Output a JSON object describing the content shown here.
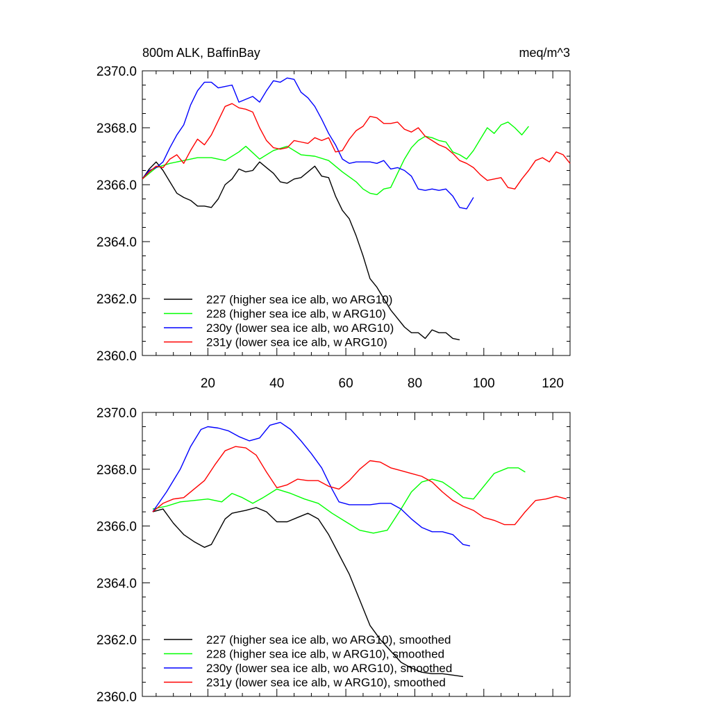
{
  "header": {
    "title": "800m ALK, BaffinBay",
    "units": "meq/m^3"
  },
  "chart_data": [
    {
      "type": "line",
      "title": "800m ALK, BaffinBay",
      "units": "meq/m^3",
      "xlim": [
        1,
        125
      ],
      "ylim": [
        2360,
        2370
      ],
      "xticks": [
        20,
        40,
        60,
        80,
        100,
        120
      ],
      "yticks": [
        2360,
        2362,
        2364,
        2366,
        2368,
        2370
      ],
      "ytick_labels": [
        "2360.0",
        "2362.0",
        "2364.0",
        "2366.0",
        "2368.0",
        "2370.0"
      ],
      "legend_position": "bottom-left",
      "series": [
        {
          "name": "227 (higher sea ice alb, wo ARG10)",
          "color": "#000000",
          "x": [
            1,
            3,
            5,
            7,
            9,
            11,
            13,
            15,
            17,
            19,
            21,
            23,
            25,
            27,
            29,
            31,
            33,
            35,
            37,
            39,
            41,
            43,
            45,
            47,
            49,
            51,
            53,
            55,
            57,
            59,
            61,
            63,
            65,
            67,
            69,
            71,
            73,
            75,
            77,
            79,
            81,
            83,
            85,
            87,
            89,
            91,
            93
          ],
          "y": [
            2366.2,
            2366.55,
            2366.8,
            2366.5,
            2366.1,
            2365.7,
            2365.55,
            2365.45,
            2365.25,
            2365.25,
            2365.2,
            2365.5,
            2366.0,
            2366.2,
            2366.55,
            2366.45,
            2366.5,
            2366.8,
            2366.6,
            2366.4,
            2366.1,
            2366.05,
            2366.2,
            2366.25,
            2366.45,
            2366.65,
            2366.3,
            2366.25,
            2365.6,
            2365.1,
            2364.8,
            2364.2,
            2363.5,
            2362.7,
            2362.4,
            2362.0,
            2361.6,
            2361.3,
            2361.0,
            2360.8,
            2360.8,
            2360.6,
            2360.9,
            2360.8,
            2360.8,
            2360.6,
            2360.55
          ]
        },
        {
          "name": "228 (higher sea ice alb, w ARG10)",
          "color": "#00ff00",
          "x": [
            1,
            5,
            9,
            13,
            17,
            21,
            25,
            29,
            31,
            35,
            39,
            43,
            47,
            51,
            55,
            59,
            63,
            65,
            67,
            69,
            71,
            73,
            75,
            77,
            79,
            81,
            83,
            85,
            87,
            89,
            91,
            93,
            95,
            97,
            99,
            101,
            103,
            105,
            107,
            109,
            111,
            113
          ],
          "y": [
            2366.2,
            2366.6,
            2366.75,
            2366.85,
            2366.95,
            2366.95,
            2366.85,
            2367.15,
            2367.35,
            2366.9,
            2367.2,
            2367.35,
            2367.05,
            2367.0,
            2366.85,
            2366.45,
            2366.1,
            2365.85,
            2365.7,
            2365.65,
            2365.85,
            2365.9,
            2366.4,
            2366.9,
            2367.3,
            2367.55,
            2367.7,
            2367.65,
            2367.55,
            2367.5,
            2367.15,
            2367.05,
            2366.9,
            2367.2,
            2367.6,
            2368.0,
            2367.8,
            2368.1,
            2368.2,
            2368.0,
            2367.75,
            2368.05
          ]
        },
        {
          "name": "230y (lower sea ice alb, wo ARG10)",
          "color": "#0000ff",
          "x": [
            1,
            3,
            5,
            7,
            9,
            11,
            13,
            15,
            17,
            19,
            21,
            23,
            25,
            27,
            29,
            31,
            33,
            35,
            37,
            39,
            41,
            43,
            45,
            47,
            49,
            51,
            53,
            55,
            57,
            59,
            61,
            63,
            65,
            67,
            69,
            71,
            73,
            75,
            77,
            79,
            81,
            83,
            85,
            87,
            89,
            91,
            93,
            95,
            97
          ],
          "y": [
            2366.2,
            2366.5,
            2366.6,
            2366.8,
            2367.3,
            2367.75,
            2368.1,
            2368.8,
            2369.3,
            2369.6,
            2369.6,
            2369.4,
            2369.45,
            2369.5,
            2368.9,
            2369.0,
            2369.1,
            2368.9,
            2369.3,
            2369.65,
            2369.6,
            2369.75,
            2369.7,
            2369.25,
            2369.05,
            2368.75,
            2368.3,
            2367.8,
            2367.4,
            2366.9,
            2366.75,
            2366.8,
            2366.8,
            2366.8,
            2366.75,
            2366.85,
            2366.55,
            2366.6,
            2366.5,
            2366.3,
            2365.85,
            2365.8,
            2365.85,
            2365.8,
            2365.85,
            2365.6,
            2365.2,
            2365.15,
            2365.55
          ]
        },
        {
          "name": "231y (lower sea ice alb, w ARG10)",
          "color": "#ff0000",
          "x": [
            1,
            3,
            5,
            7,
            9,
            11,
            13,
            15,
            17,
            19,
            21,
            23,
            25,
            27,
            29,
            31,
            33,
            35,
            37,
            39,
            41,
            43,
            45,
            47,
            49,
            51,
            53,
            55,
            57,
            59,
            61,
            63,
            65,
            67,
            69,
            71,
            73,
            75,
            77,
            79,
            81,
            83,
            85,
            87,
            89,
            91,
            93,
            95,
            97,
            99,
            101,
            103,
            105,
            107,
            109,
            111,
            113,
            115,
            117,
            119,
            121,
            123,
            125
          ],
          "y": [
            2366.2,
            2366.45,
            2366.65,
            2366.6,
            2366.9,
            2367.05,
            2366.75,
            2367.2,
            2367.6,
            2367.4,
            2367.75,
            2368.25,
            2368.75,
            2368.85,
            2368.7,
            2368.65,
            2368.55,
            2368.0,
            2367.55,
            2367.3,
            2367.25,
            2367.3,
            2367.55,
            2367.5,
            2367.45,
            2367.65,
            2367.55,
            2367.65,
            2367.15,
            2367.2,
            2367.6,
            2367.9,
            2368.05,
            2368.4,
            2368.35,
            2368.15,
            2368.15,
            2368.2,
            2367.95,
            2367.85,
            2368.0,
            2367.7,
            2367.55,
            2367.4,
            2367.3,
            2367.1,
            2366.85,
            2366.75,
            2366.6,
            2366.35,
            2366.15,
            2366.2,
            2366.25,
            2365.9,
            2365.85,
            2366.2,
            2366.5,
            2366.85,
            2366.95,
            2366.8,
            2367.15,
            2367.05,
            2366.75
          ]
        }
      ]
    },
    {
      "type": "line",
      "xlim": [
        1,
        125
      ],
      "ylim": [
        2360,
        2370
      ],
      "xticks": [
        20,
        40,
        60,
        80,
        100,
        120
      ],
      "yticks": [
        2360,
        2362,
        2364,
        2366,
        2368,
        2370
      ],
      "ytick_labels": [
        "2360.0",
        "2362.0",
        "2364.0",
        "2366.0",
        "2368.0",
        "2370.0"
      ],
      "legend_position": "bottom-left",
      "series": [
        {
          "name": "227 (higher sea ice alb, wo ARG10), smoothed",
          "color": "#000000",
          "x": [
            4,
            7,
            10,
            13,
            16,
            19,
            21,
            23,
            25,
            27,
            29,
            31,
            34,
            37,
            40,
            43,
            46,
            49,
            52,
            55,
            58,
            61,
            64,
            67,
            70,
            73,
            76,
            79,
            82,
            85,
            88,
            91,
            94
          ],
          "y": [
            2366.5,
            2366.6,
            2366.1,
            2365.7,
            2365.45,
            2365.25,
            2365.35,
            2365.8,
            2366.25,
            2366.45,
            2366.5,
            2366.55,
            2366.65,
            2366.5,
            2366.15,
            2366.15,
            2366.3,
            2366.45,
            2366.25,
            2365.7,
            2365.0,
            2364.3,
            2363.4,
            2362.5,
            2362.0,
            2361.6,
            2361.2,
            2361.0,
            2360.85,
            2360.8,
            2360.8,
            2360.75,
            2360.7
          ]
        },
        {
          "name": "228 (higher sea ice alb, w ARG10), smoothed",
          "color": "#00ff00",
          "x": [
            4,
            8,
            12,
            16,
            20,
            24,
            27,
            30,
            33,
            36,
            40,
            44,
            48,
            52,
            56,
            60,
            64,
            68,
            72,
            76,
            79,
            82,
            85,
            88,
            91,
            94,
            97,
            100,
            103,
            107,
            110,
            112
          ],
          "y": [
            2366.6,
            2366.7,
            2366.85,
            2366.9,
            2366.95,
            2366.85,
            2367.15,
            2367.0,
            2366.8,
            2367.0,
            2367.3,
            2367.15,
            2366.95,
            2366.8,
            2366.45,
            2366.15,
            2365.85,
            2365.75,
            2365.85,
            2366.6,
            2367.2,
            2367.55,
            2367.65,
            2367.55,
            2367.3,
            2367.0,
            2366.95,
            2367.4,
            2367.85,
            2368.05,
            2368.05,
            2367.9
          ]
        },
        {
          "name": "230y (lower sea ice alb, wo ARG10), smoothed",
          "color": "#0000ff",
          "x": [
            4,
            8,
            12,
            15,
            18,
            20,
            23,
            26,
            29,
            32,
            35,
            38,
            41,
            44,
            47,
            50,
            53,
            56,
            58,
            61,
            64,
            67,
            70,
            73,
            76,
            79,
            82,
            85,
            88,
            91,
            94,
            96
          ],
          "y": [
            2366.5,
            2367.2,
            2368.0,
            2368.8,
            2369.4,
            2369.5,
            2369.45,
            2369.35,
            2369.15,
            2369.0,
            2369.1,
            2369.55,
            2369.65,
            2369.4,
            2369.0,
            2368.55,
            2368.05,
            2367.3,
            2366.85,
            2366.75,
            2366.75,
            2366.75,
            2366.8,
            2366.8,
            2366.6,
            2366.25,
            2365.95,
            2365.8,
            2365.8,
            2365.7,
            2365.35,
            2365.3
          ]
        },
        {
          "name": "231y (lower sea ice alb, w ARG10), smoothed",
          "color": "#ff0000",
          "x": [
            4,
            7,
            10,
            13,
            16,
            19,
            22,
            25,
            28,
            31,
            34,
            37,
            40,
            43,
            46,
            49,
            52,
            55,
            58,
            61,
            64,
            67,
            70,
            73,
            76,
            79,
            82,
            85,
            88,
            91,
            94,
            97,
            100,
            103,
            106,
            109,
            112,
            115,
            118,
            121,
            124
          ],
          "y": [
            2366.5,
            2366.8,
            2366.95,
            2367.0,
            2367.3,
            2367.6,
            2368.15,
            2368.65,
            2368.8,
            2368.75,
            2368.5,
            2367.9,
            2367.35,
            2367.45,
            2367.65,
            2367.6,
            2367.6,
            2367.4,
            2367.3,
            2367.6,
            2368.0,
            2368.3,
            2368.25,
            2368.05,
            2367.95,
            2367.85,
            2367.75,
            2367.55,
            2367.2,
            2366.9,
            2366.7,
            2366.55,
            2366.3,
            2366.2,
            2366.05,
            2366.05,
            2366.5,
            2366.9,
            2366.95,
            2367.05,
            2366.95
          ]
        }
      ]
    }
  ]
}
